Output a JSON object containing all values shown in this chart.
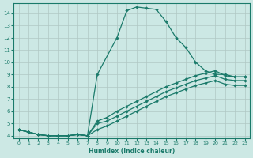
{
  "xlabel": "Humidex (Indice chaleur)",
  "background_color": "#cce8e4",
  "grid_color": "#b0c8c4",
  "line_color": "#1a7a6a",
  "xlim": [
    -0.5,
    23.5
  ],
  "ylim": [
    3.8,
    14.8
  ],
  "yticks": [
    4,
    5,
    6,
    7,
    8,
    9,
    10,
    11,
    12,
    13,
    14
  ],
  "xticks": [
    0,
    1,
    2,
    3,
    4,
    5,
    6,
    7,
    8,
    9,
    10,
    11,
    12,
    13,
    14,
    15,
    16,
    17,
    18,
    19,
    20,
    21,
    22,
    23
  ],
  "curve1_x": [
    0,
    1,
    2,
    3,
    4,
    5,
    6,
    7,
    8,
    10,
    11,
    12,
    13,
    14,
    15,
    16,
    17,
    18,
    19,
    20,
    21,
    22,
    23
  ],
  "curve1_y": [
    4.5,
    4.3,
    4.1,
    4.0,
    4.0,
    4.0,
    4.1,
    4.0,
    9.0,
    12.0,
    14.2,
    14.5,
    14.4,
    14.3,
    13.3,
    12.0,
    11.2,
    10.0,
    9.3,
    9.0,
    9.0,
    8.8,
    8.8
  ],
  "curve2_x": [
    0,
    1,
    2,
    3,
    4,
    5,
    6,
    7,
    8,
    9,
    10,
    11,
    12,
    13,
    14,
    15,
    16,
    17,
    18,
    19,
    20,
    21,
    22,
    23
  ],
  "curve2_y": [
    4.5,
    4.3,
    4.1,
    4.0,
    4.0,
    4.0,
    4.1,
    4.0,
    5.2,
    5.5,
    6.0,
    6.4,
    6.8,
    7.2,
    7.6,
    8.0,
    8.3,
    8.6,
    8.9,
    9.1,
    9.3,
    8.9,
    8.8,
    8.8
  ],
  "curve3_x": [
    0,
    1,
    2,
    3,
    4,
    5,
    6,
    7,
    8,
    9,
    10,
    11,
    12,
    13,
    14,
    15,
    16,
    17,
    18,
    19,
    20,
    21,
    22,
    23
  ],
  "curve3_y": [
    4.5,
    4.3,
    4.1,
    4.0,
    4.0,
    4.0,
    4.1,
    4.0,
    5.0,
    5.2,
    5.6,
    6.0,
    6.4,
    6.8,
    7.2,
    7.6,
    7.9,
    8.2,
    8.5,
    8.7,
    8.9,
    8.6,
    8.5,
    8.5
  ],
  "curve4_x": [
    0,
    1,
    2,
    3,
    4,
    5,
    6,
    7,
    8,
    9,
    10,
    11,
    12,
    13,
    14,
    15,
    16,
    17,
    18,
    19,
    20,
    21,
    22,
    23
  ],
  "curve4_y": [
    4.5,
    4.3,
    4.1,
    4.0,
    4.0,
    4.0,
    4.1,
    4.0,
    4.5,
    4.8,
    5.2,
    5.6,
    6.0,
    6.4,
    6.8,
    7.2,
    7.5,
    7.8,
    8.1,
    8.3,
    8.5,
    8.2,
    8.1,
    8.1
  ]
}
